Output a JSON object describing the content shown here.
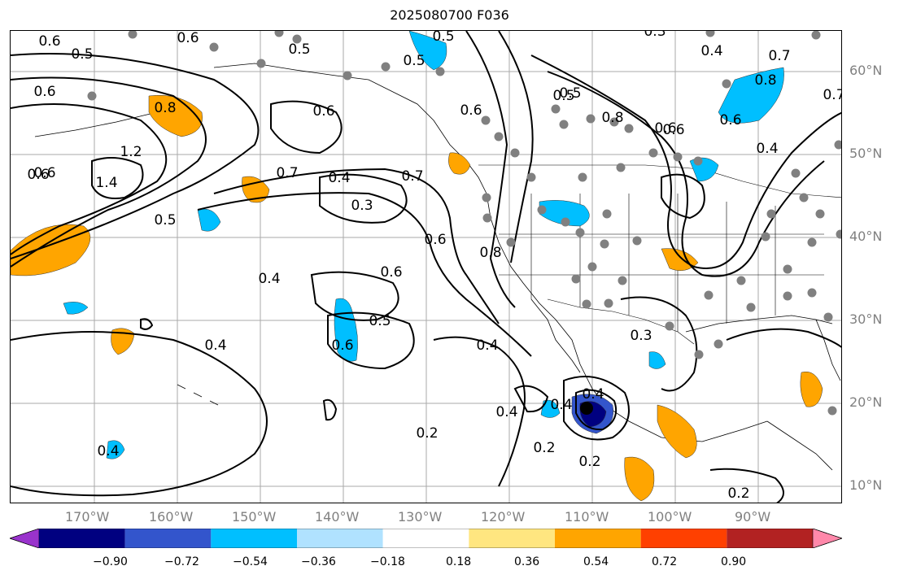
{
  "title": "2025080700 F036",
  "lat_labels": [
    "60°N",
    "50°N",
    "40°N",
    "30°N",
    "20°N",
    "10°N"
  ],
  "lon_labels": [
    "170°W",
    "160°W",
    "150°W",
    "140°W",
    "130°W",
    "120°W",
    "110°W",
    "100°W",
    "90°W"
  ],
  "colorbar": {
    "ticks": [
      "−0.90",
      "−0.72",
      "−0.54",
      "−0.36",
      "−0.18",
      "0.18",
      "0.36",
      "0.54",
      "0.72",
      "0.90"
    ],
    "colors": [
      "#9933cc",
      "#000080",
      "#3355cc",
      "#00bfff",
      "#b0e2ff",
      "#ffffff",
      "#ffe680",
      "#ffa500",
      "#ff4000",
      "#b22222",
      "#ff88aa"
    ]
  },
  "contour_labels": [
    "0.6",
    "0.5",
    "0.6",
    "0.5",
    "0.6",
    "1.2",
    "1.4",
    "0.6",
    "0.5",
    "0.8",
    "0.6",
    "0.7",
    "0.4",
    "0.3",
    "0.7",
    "0.6",
    "0.8",
    "0.5",
    "0.5",
    "0.6",
    "0.4",
    "0.5",
    "0.6",
    "0.4",
    "0.6",
    "0.4",
    "0.5",
    "0.6",
    "0.4",
    "0.3",
    "0.4",
    "0.2",
    "0.2",
    "0.4",
    "0.2",
    "0.4",
    "0.6",
    "0.8",
    "0.7",
    "0.4",
    "0.6",
    "0.8",
    "0.5",
    "0.6",
    "0.7",
    "0.2",
    "0.4",
    "0.3"
  ]
}
